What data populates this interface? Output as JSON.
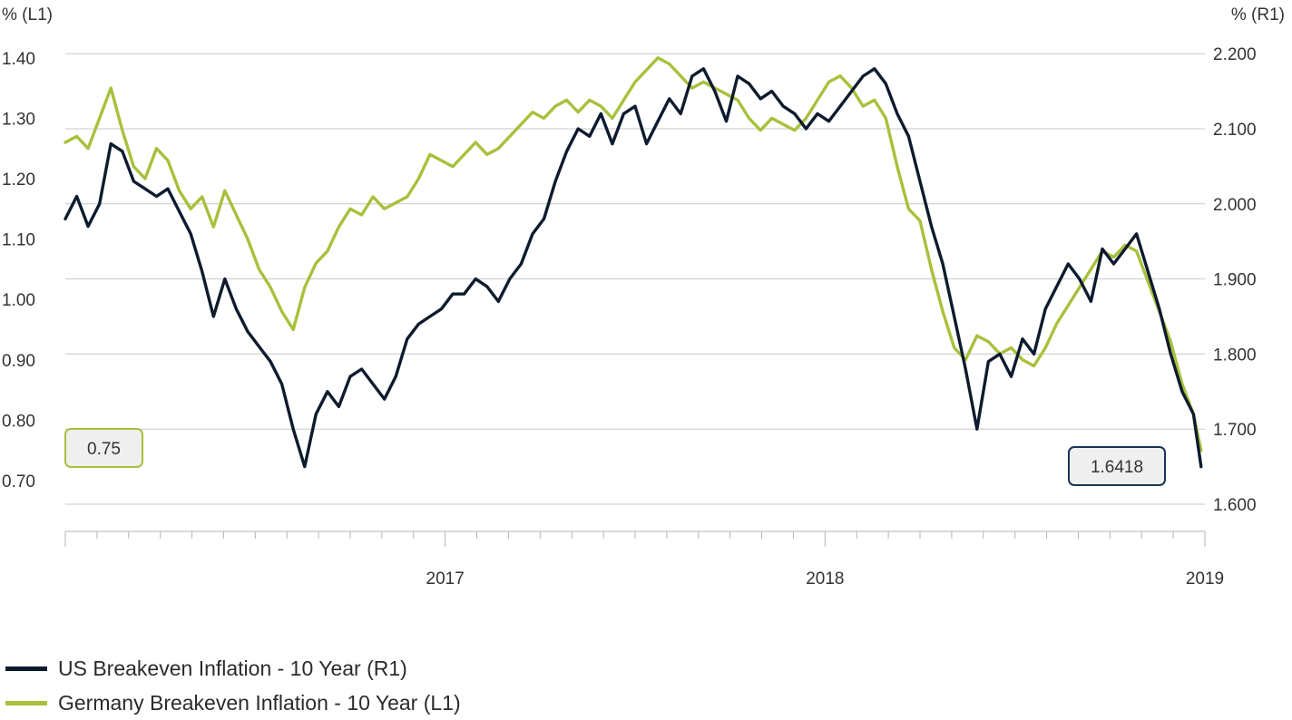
{
  "chart_data": {
    "type": "line",
    "left_axis": {
      "unit_label": "% (L1)",
      "range": [
        0.65,
        1.45
      ],
      "ticks": [
        "0.70",
        "0.80",
        "0.90",
        "1.00",
        "1.10",
        "1.20",
        "1.30",
        "1.40"
      ]
    },
    "right_axis": {
      "unit_label": "% (R1)",
      "range": [
        1.6,
        2.2
      ],
      "ticks": [
        "1.600",
        "1.700",
        "1.800",
        "1.900",
        "2.000",
        "2.100",
        "2.200"
      ]
    },
    "x_axis": {
      "range": [
        2016.0,
        2019.0
      ],
      "ticks": [
        {
          "x": 2017.0,
          "label": "2017"
        },
        {
          "x": 2018.0,
          "label": "2018"
        },
        {
          "x": 2019.0,
          "label": "2019"
        }
      ]
    },
    "grid": "horizontal",
    "legend_position": "bottom-left",
    "series": [
      {
        "name": "US Breakeven Inflation - 10 Year (R1)",
        "axis": "right",
        "color": "#0d1b2e",
        "x": [
          2016.0,
          2016.03,
          2016.06,
          2016.09,
          2016.12,
          2016.15,
          2016.18,
          2016.21,
          2016.24,
          2016.27,
          2016.3,
          2016.33,
          2016.36,
          2016.39,
          2016.42,
          2016.45,
          2016.48,
          2016.51,
          2016.54,
          2016.57,
          2016.6,
          2016.63,
          2016.66,
          2016.69,
          2016.72,
          2016.75,
          2016.78,
          2016.81,
          2016.84,
          2016.87,
          2016.9,
          2016.93,
          2016.96,
          2016.99,
          2017.02,
          2017.05,
          2017.08,
          2017.11,
          2017.14,
          2017.17,
          2017.2,
          2017.23,
          2017.26,
          2017.29,
          2017.32,
          2017.35,
          2017.38,
          2017.41,
          2017.44,
          2017.47,
          2017.5,
          2017.53,
          2017.56,
          2017.59,
          2017.62,
          2017.65,
          2017.68,
          2017.71,
          2017.74,
          2017.77,
          2017.8,
          2017.83,
          2017.86,
          2017.89,
          2017.92,
          2017.95,
          2017.98,
          2018.01,
          2018.04,
          2018.07,
          2018.1,
          2018.13,
          2018.16,
          2018.19,
          2018.22,
          2018.25,
          2018.28,
          2018.31,
          2018.34,
          2018.37,
          2018.4,
          2018.43,
          2018.46,
          2018.49,
          2018.52,
          2018.55,
          2018.58,
          2018.61,
          2018.64,
          2018.67,
          2018.7,
          2018.73,
          2018.76,
          2018.79,
          2018.82,
          2018.85,
          2018.88,
          2018.91,
          2018.94,
          2018.97,
          2018.99
        ],
        "values": [
          1.98,
          2.01,
          1.97,
          2.0,
          2.08,
          2.07,
          2.03,
          2.02,
          2.01,
          2.02,
          1.99,
          1.96,
          1.91,
          1.85,
          1.9,
          1.86,
          1.83,
          1.81,
          1.79,
          1.76,
          1.7,
          1.65,
          1.72,
          1.75,
          1.73,
          1.77,
          1.78,
          1.76,
          1.74,
          1.77,
          1.82,
          1.84,
          1.85,
          1.86,
          1.88,
          1.88,
          1.9,
          1.89,
          1.87,
          1.9,
          1.92,
          1.96,
          1.98,
          2.03,
          2.07,
          2.1,
          2.09,
          2.12,
          2.08,
          2.12,
          2.13,
          2.08,
          2.11,
          2.14,
          2.12,
          2.17,
          2.18,
          2.15,
          2.11,
          2.17,
          2.16,
          2.14,
          2.15,
          2.13,
          2.12,
          2.1,
          2.12,
          2.11,
          2.13,
          2.15,
          2.17,
          2.18,
          2.16,
          2.12,
          2.09,
          2.03,
          1.97,
          1.92,
          1.85,
          1.78,
          1.7,
          1.79,
          1.8,
          1.77,
          1.82,
          1.8,
          1.86,
          1.89,
          1.92,
          1.9,
          1.87,
          1.94,
          1.92,
          1.94,
          1.96,
          1.91,
          1.86,
          1.8,
          1.75,
          1.72,
          1.65
        ]
      },
      {
        "name": "Germany Breakeven Inflation - 10 Year (L1)",
        "axis": "left",
        "color": "#a7c13c",
        "x": [
          2016.0,
          2016.03,
          2016.06,
          2016.09,
          2016.12,
          2016.15,
          2016.18,
          2016.21,
          2016.24,
          2016.27,
          2016.3,
          2016.33,
          2016.36,
          2016.39,
          2016.42,
          2016.45,
          2016.48,
          2016.51,
          2016.54,
          2016.57,
          2016.6,
          2016.63,
          2016.66,
          2016.69,
          2016.72,
          2016.75,
          2016.78,
          2016.81,
          2016.84,
          2016.87,
          2016.9,
          2016.93,
          2016.96,
          2016.99,
          2017.02,
          2017.05,
          2017.08,
          2017.11,
          2017.14,
          2017.17,
          2017.2,
          2017.23,
          2017.26,
          2017.29,
          2017.32,
          2017.35,
          2017.38,
          2017.41,
          2017.44,
          2017.47,
          2017.5,
          2017.53,
          2017.56,
          2017.59,
          2017.62,
          2017.65,
          2017.68,
          2017.71,
          2017.74,
          2017.77,
          2017.8,
          2017.83,
          2017.86,
          2017.89,
          2017.92,
          2017.95,
          2017.98,
          2018.01,
          2018.04,
          2018.07,
          2018.1,
          2018.13,
          2018.16,
          2018.19,
          2018.22,
          2018.25,
          2018.28,
          2018.31,
          2018.34,
          2018.37,
          2018.4,
          2018.43,
          2018.46,
          2018.49,
          2018.52,
          2018.55,
          2018.58,
          2018.61,
          2018.64,
          2018.67,
          2018.7,
          2018.73,
          2018.76,
          2018.79,
          2018.82,
          2018.85,
          2018.88,
          2018.91,
          2018.94,
          2018.97,
          2018.99
        ],
        "values": [
          1.26,
          1.27,
          1.25,
          1.3,
          1.35,
          1.28,
          1.22,
          1.2,
          1.25,
          1.23,
          1.18,
          1.15,
          1.17,
          1.12,
          1.18,
          1.14,
          1.1,
          1.05,
          1.02,
          0.98,
          0.95,
          1.02,
          1.06,
          1.08,
          1.12,
          1.15,
          1.14,
          1.17,
          1.15,
          1.16,
          1.17,
          1.2,
          1.24,
          1.23,
          1.22,
          1.24,
          1.26,
          1.24,
          1.25,
          1.27,
          1.29,
          1.31,
          1.3,
          1.32,
          1.33,
          1.31,
          1.33,
          1.32,
          1.3,
          1.33,
          1.36,
          1.38,
          1.4,
          1.39,
          1.37,
          1.35,
          1.36,
          1.35,
          1.34,
          1.33,
          1.3,
          1.28,
          1.3,
          1.29,
          1.28,
          1.3,
          1.33,
          1.36,
          1.37,
          1.35,
          1.32,
          1.33,
          1.3,
          1.22,
          1.15,
          1.13,
          1.05,
          0.98,
          0.92,
          0.9,
          0.94,
          0.93,
          0.91,
          0.92,
          0.9,
          0.89,
          0.92,
          0.96,
          0.99,
          1.02,
          1.05,
          1.08,
          1.07,
          1.09,
          1.08,
          1.03,
          0.98,
          0.93,
          0.86,
          0.81,
          0.75
        ]
      }
    ],
    "annotations": [
      {
        "text": "0.75",
        "axis": "left",
        "color": "#a7c13c"
      },
      {
        "text": "1.6418",
        "axis": "right",
        "color": "#1a3556"
      }
    ]
  }
}
